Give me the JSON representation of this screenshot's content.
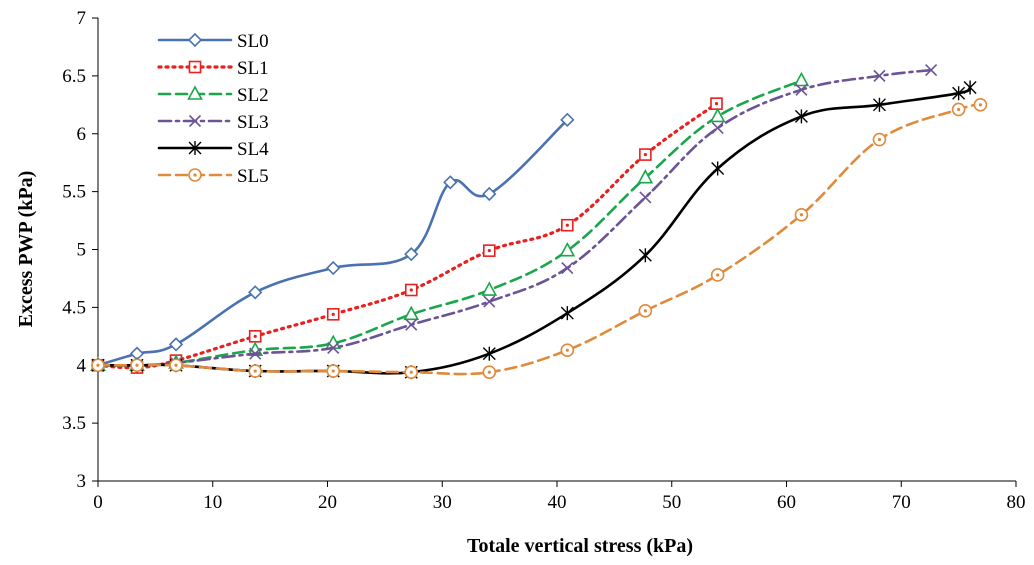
{
  "chart_data": {
    "type": "line",
    "xlabel": "Totale vertical stress (kPa)",
    "ylabel": "Excess PWP (kPa)",
    "xlim": [
      0,
      80
    ],
    "ylim": [
      3,
      7
    ],
    "xticks": [
      0,
      10,
      20,
      30,
      40,
      50,
      60,
      70,
      80
    ],
    "yticks": [
      3,
      3.5,
      4,
      4.5,
      5,
      5.5,
      6,
      6.5,
      7
    ],
    "grid": false,
    "legend_position": "top-left",
    "series": [
      {
        "name": "SL0",
        "color": "#4a72b0",
        "marker": "diamond",
        "dash": "solid",
        "x": [
          0,
          3.4,
          6.8,
          13.7,
          20.5,
          27.3,
          30.7,
          34.1,
          40.9
        ],
        "y": [
          4.0,
          4.1,
          4.18,
          4.63,
          4.84,
          4.96,
          5.58,
          5.48,
          6.12
        ]
      },
      {
        "name": "SL1",
        "color": "#e8201f",
        "marker": "square-dot",
        "dash": "dotted",
        "x": [
          0,
          3.4,
          6.8,
          13.7,
          20.5,
          27.3,
          34.1,
          40.9,
          47.7,
          53.9
        ],
        "y": [
          4.0,
          3.98,
          4.04,
          4.25,
          4.44,
          4.65,
          4.99,
          5.21,
          5.82,
          6.26
        ]
      },
      {
        "name": "SL2",
        "color": "#1aa64a",
        "marker": "triangle",
        "dash": "dashed",
        "x": [
          0,
          3.4,
          6.8,
          13.7,
          20.5,
          27.3,
          34.1,
          40.9,
          47.7,
          54.0,
          61.3
        ],
        "y": [
          4.0,
          4.0,
          4.02,
          4.13,
          4.19,
          4.44,
          4.65,
          4.99,
          5.62,
          6.15,
          6.46
        ]
      },
      {
        "name": "SL3",
        "color": "#6a5496",
        "marker": "x",
        "dash": "dashdot",
        "x": [
          0,
          3.4,
          6.8,
          13.7,
          20.5,
          27.3,
          34.1,
          40.9,
          47.7,
          54.0,
          61.3,
          68.1,
          72.6
        ],
        "y": [
          4.0,
          4.0,
          4.02,
          4.1,
          4.15,
          4.35,
          4.55,
          4.84,
          5.45,
          6.05,
          6.38,
          6.5,
          6.55
        ]
      },
      {
        "name": "SL4",
        "color": "#000000",
        "marker": "asterisk",
        "dash": "solid",
        "x": [
          0,
          3.4,
          6.8,
          13.7,
          20.5,
          27.3,
          34.1,
          40.9,
          47.7,
          54.0,
          61.3,
          68.1,
          75.0,
          76.0
        ],
        "y": [
          4.0,
          4.0,
          4.0,
          3.95,
          3.95,
          3.94,
          4.1,
          4.45,
          4.95,
          5.7,
          6.15,
          6.25,
          6.35,
          6.4
        ]
      },
      {
        "name": "SL5",
        "color": "#e08a3c",
        "marker": "circle-dot",
        "dash": "dashed",
        "x": [
          0,
          3.4,
          6.8,
          13.7,
          20.5,
          27.3,
          34.1,
          40.9,
          47.7,
          54.0,
          61.3,
          68.1,
          75.0,
          76.9
        ],
        "y": [
          4.0,
          4.0,
          4.0,
          3.95,
          3.95,
          3.94,
          3.94,
          4.13,
          4.47,
          4.78,
          5.3,
          5.95,
          6.21,
          6.25
        ]
      }
    ]
  }
}
